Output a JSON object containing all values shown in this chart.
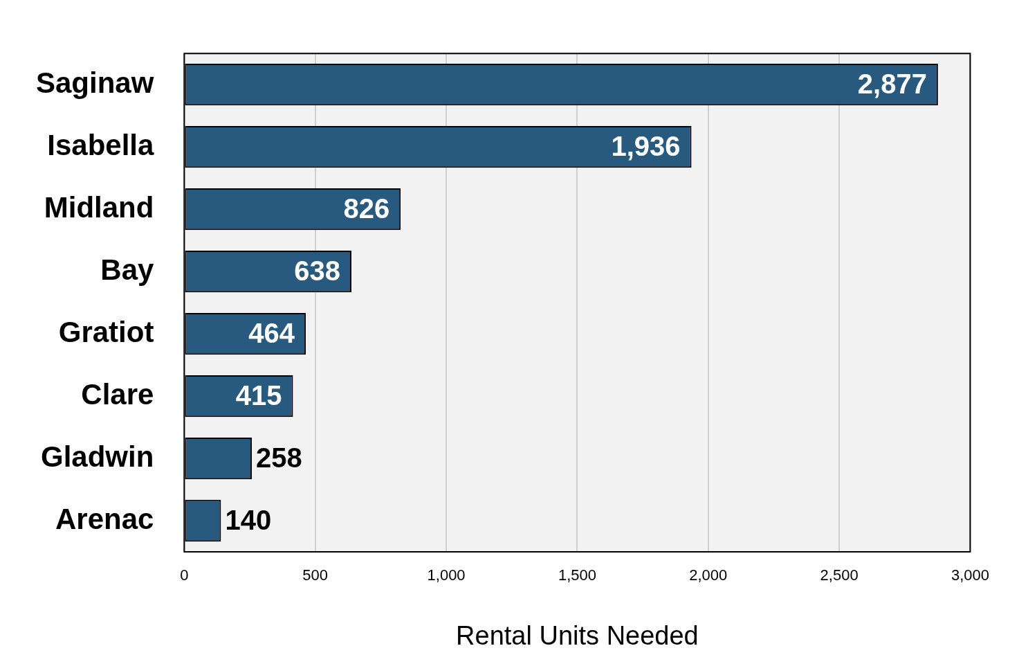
{
  "chart_data": {
    "type": "bar",
    "orientation": "horizontal",
    "xlabel": "Rental Units Needed",
    "categories": [
      "Saginaw",
      "Isabella",
      "Midland",
      "Bay",
      "Gratiot",
      "Clare",
      "Gladwin",
      "Arenac"
    ],
    "values": [
      2877,
      1936,
      826,
      638,
      464,
      415,
      258,
      140
    ],
    "value_labels": [
      "2,877",
      "1,936",
      "826",
      "638",
      "464",
      "415",
      "258",
      "140"
    ],
    "color": "#275a7e",
    "xlim": [
      0,
      3000
    ],
    "xticks": [
      0,
      500,
      {
        "value": 1000,
        "label": "1,000"
      },
      {
        "value": 1500,
        "label": "1,500"
      },
      {
        "value": 2000,
        "label": "2,000"
      },
      {
        "value": 2500,
        "label": "2,500"
      },
      {
        "value": 3000,
        "label": "3,000"
      }
    ],
    "grid": "x",
    "legend": false
  }
}
